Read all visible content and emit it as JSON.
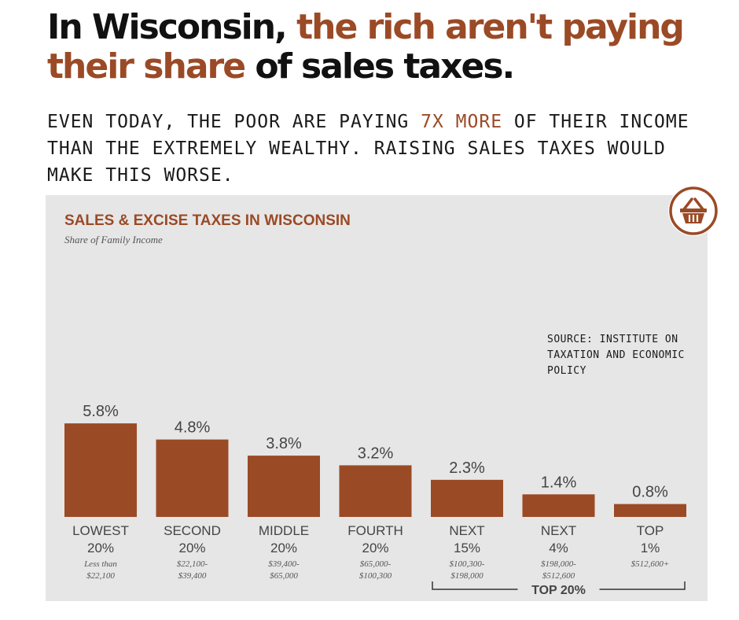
{
  "headline": {
    "part1": "In Wisconsin, ",
    "part2": "the rich aren't paying their share",
    "part3": " of sales taxes."
  },
  "subhead": {
    "part1": "EVEN TODAY, THE POOR ARE PAYING ",
    "part2": "7X MORE",
    "part3": " OF THEIR INCOME THAN THE EXTREMELY WEALTHY. RAISING SALES TAXES WOULD MAKE THIS WORSE."
  },
  "source": "SOURCE: INSTITUTE ON TAXATION AND ECONOMIC POLICY",
  "icon": "shopping-basket-icon",
  "colors": {
    "accent": "#9b4a26",
    "bar": "#9b4a26",
    "panel": "#e6e6e6"
  },
  "chart_data": {
    "type": "bar",
    "title": "SALES & EXCISE TAXES IN WISCONSIN",
    "subtitle": "Share of Family Income",
    "categories": [
      "LOWEST 20%",
      "SECOND 20%",
      "MIDDLE 20%",
      "FOURTH 20%",
      "NEXT 15%",
      "NEXT 4%",
      "TOP 1%"
    ],
    "category_line1": [
      "LOWEST",
      "SECOND",
      "MIDDLE",
      "FOURTH",
      "NEXT",
      "NEXT",
      "TOP"
    ],
    "category_line2": [
      "20%",
      "20%",
      "20%",
      "20%",
      "15%",
      "4%",
      "1%"
    ],
    "income_line1": [
      "Less than",
      "$22,100-",
      "$39,400-",
      "$65,000-",
      "$100,300-",
      "$198,000-",
      "$512,600+"
    ],
    "income_line2": [
      "$22,100",
      "$39,400",
      "$65,000",
      "$100,300",
      "$198,000",
      "$512,600",
      ""
    ],
    "values": [
      5.8,
      4.8,
      3.8,
      3.2,
      2.3,
      1.4,
      0.8
    ],
    "value_labels": [
      "5.8%",
      "4.8%",
      "3.8%",
      "3.2%",
      "2.3%",
      "1.4%",
      "0.8%"
    ],
    "unit": "%",
    "grid": false,
    "group_annotation": {
      "label": "TOP 20%",
      "categories": [
        "NEXT 15%",
        "NEXT 4%",
        "TOP 1%"
      ]
    }
  }
}
